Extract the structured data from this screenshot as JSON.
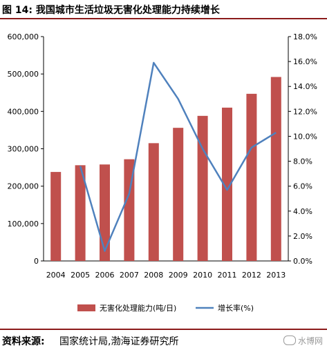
{
  "header": {
    "title": "图 14:  我国城市生活垃圾无害化处理能力持续增长"
  },
  "footer": {
    "source_label": "资料来源:",
    "source_text": "国家统计局,渤海证券研究所",
    "watermark": "水博网"
  },
  "chart_data": {
    "type": "bar",
    "title": "",
    "categories": [
      "2004",
      "2005",
      "2006",
      "2007",
      "2008",
      "2009",
      "2010",
      "2011",
      "2012",
      "2013"
    ],
    "series": [
      {
        "name": "无害化处理能力(吨/日)",
        "type": "bar",
        "axis": "left",
        "color": "#c0504d",
        "values": [
          238000,
          256000,
          258000,
          272000,
          315000,
          356000,
          388000,
          410000,
          447000,
          492000
        ]
      },
      {
        "name": "增长率(%)",
        "type": "line",
        "axis": "right",
        "color": "#4f81bd",
        "values": [
          null,
          7.6,
          0.8,
          5.4,
          15.9,
          13.0,
          9.0,
          5.7,
          9.1,
          10.3
        ]
      }
    ],
    "left_axis": {
      "ylim": [
        0,
        600000
      ],
      "ticks": [
        "0",
        "100,000",
        "200,000",
        "300,000",
        "400,000",
        "500,000",
        "600,000"
      ]
    },
    "right_axis": {
      "ylim": [
        0,
        18
      ],
      "ticks": [
        "0.0%",
        "2.0%",
        "4.0%",
        "6.0%",
        "8.0%",
        "10.0%",
        "12.0%",
        "14.0%",
        "16.0%",
        "18.0%"
      ]
    },
    "legend_position": "bottom",
    "grid": false
  }
}
